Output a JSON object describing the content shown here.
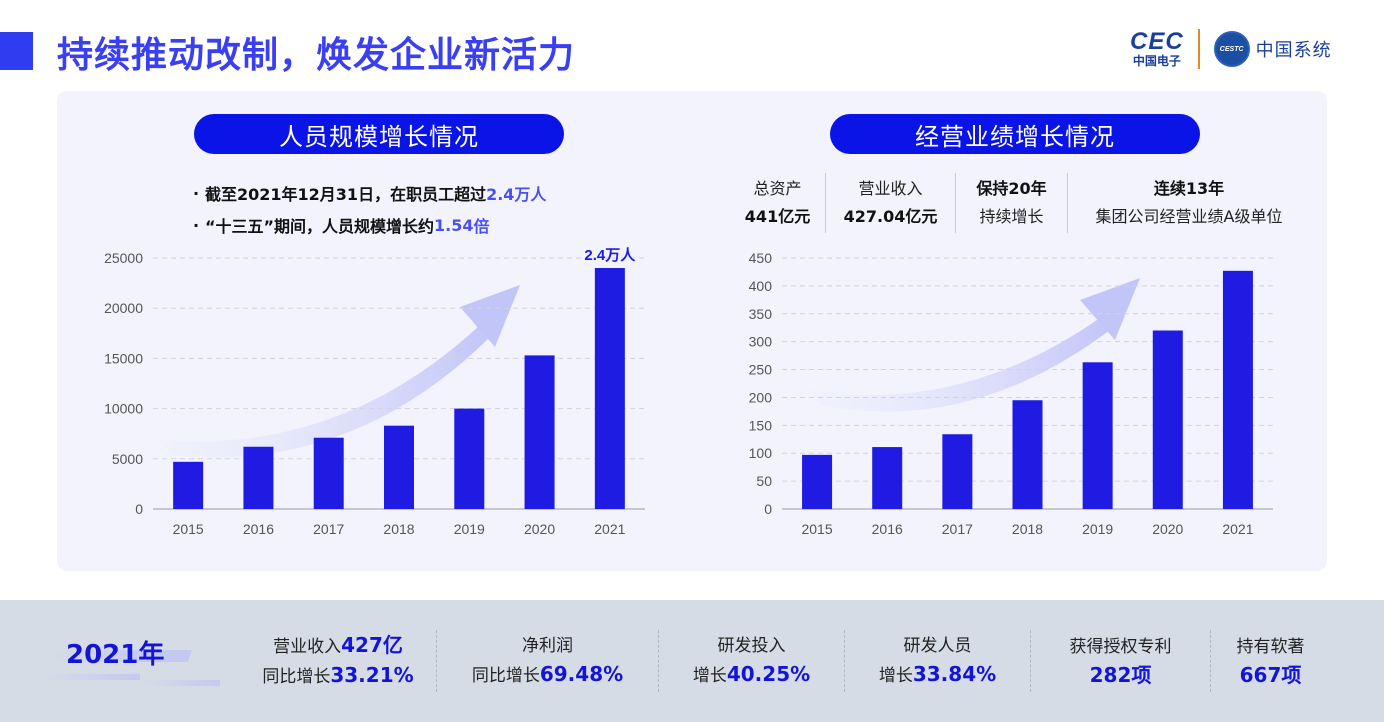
{
  "header": {
    "title": "持续推动改制，焕发企业新活力",
    "logo_cec": "CEC",
    "logo_cec_sub": "中国电子",
    "logo_cestc": "CESTC",
    "logo_cestc_name": "中国系统"
  },
  "left_section": {
    "title": "人员规模增长情况",
    "bullets": [
      {
        "prefix": "截至2021年12月31日，在职员工超过",
        "highlight": "2.4万人",
        "suffix": ""
      },
      {
        "prefix": "“十三五”期间，人员规模增长约",
        "highlight": "1.54",
        "suffix": "倍"
      }
    ]
  },
  "right_section": {
    "title": "经营业绩增长情况",
    "stats": [
      {
        "line1": "总资产",
        "line2": "441亿元",
        "bold": "line2"
      },
      {
        "line1": "营业收入",
        "line2": "427.04亿元",
        "bold": "line2"
      },
      {
        "line1": "保持20年",
        "line2": "持续增长",
        "bold": "line1"
      },
      {
        "line1": "连续13年",
        "line2": "集团公司经营业绩A级单位",
        "bold": "line1"
      }
    ]
  },
  "chart_data": [
    {
      "type": "bar",
      "title": "人员规模增长情况",
      "categories": [
        "2015",
        "2016",
        "2017",
        "2018",
        "2019",
        "2020",
        "2021"
      ],
      "values": [
        4700,
        6200,
        7100,
        8300,
        10000,
        15300,
        24000
      ],
      "yticks": [
        0,
        5000,
        10000,
        15000,
        20000,
        25000
      ],
      "ylim": [
        0,
        25000
      ],
      "xlabel": "",
      "ylabel": "",
      "grid": true,
      "annotations": [
        {
          "category": "2021",
          "text": "2.4万人"
        }
      ],
      "color": "#1f1be3"
    },
    {
      "type": "bar",
      "title": "经营业绩增长情况",
      "categories": [
        "2015",
        "2016",
        "2017",
        "2018",
        "2019",
        "2020",
        "2021"
      ],
      "values": [
        97,
        111,
        134,
        195,
        263,
        320,
        427
      ],
      "yticks": [
        0,
        50,
        100,
        150,
        200,
        250,
        300,
        350,
        400,
        450
      ],
      "ylim": [
        0,
        450
      ],
      "xlabel": "",
      "ylabel": "",
      "grid": true,
      "annotations": [],
      "color": "#1f1be3"
    }
  ],
  "footer": {
    "year": "2021年",
    "kpis": [
      {
        "l1_text": "营业收入",
        "l1_value": "427亿",
        "l2_text": "同比增长",
        "l2_value": "33.21%"
      },
      {
        "l1_text": "净利润",
        "l1_value": "",
        "l2_text": "同比增长",
        "l2_value": "69.48%"
      },
      {
        "l1_text": "研发投入",
        "l1_value": "",
        "l2_text": "增长",
        "l2_value": "40.25%"
      },
      {
        "l1_text": "研发人员",
        "l1_value": "",
        "l2_text": "增长",
        "l2_value": "33.84%"
      },
      {
        "l1_text": "获得授权专利",
        "l1_value": "",
        "l2_text": "",
        "l2_value": "282项"
      },
      {
        "l1_text": "持有软著",
        "l1_value": "",
        "l2_text": "",
        "l2_value": "667项"
      }
    ]
  },
  "colors": {
    "accent": "#3a40f2",
    "pill": "#0a14e6",
    "bar": "#1f1be3",
    "panel_bg": "#f2f3fd",
    "footer_bg": "#d6dce6"
  }
}
